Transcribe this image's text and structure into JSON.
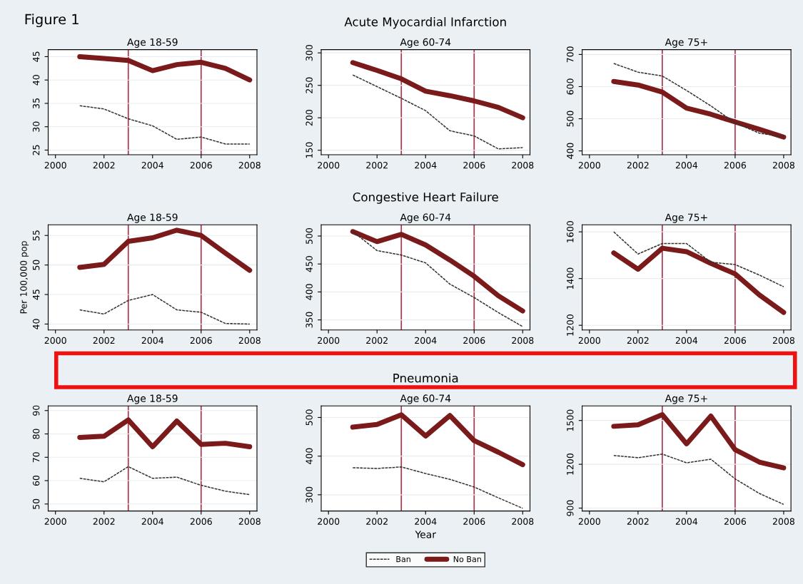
{
  "chart_data": [
    {
      "type": "line",
      "title": "Age 18-59",
      "annotations": [
        "Figure 1"
      ],
      "x": [
        2001,
        2002,
        2003,
        2004,
        2005,
        2006,
        2007,
        2008
      ],
      "xlim": [
        1999.7,
        2008.3
      ],
      "xticks": [
        2000,
        2002,
        2004,
        2006,
        2008
      ],
      "ylim": [
        24,
        46.5
      ],
      "yticks": [
        25,
        30,
        35,
        40,
        45
      ],
      "grid": "y",
      "legend": false,
      "ref_lines": [
        {
          "axis": "x",
          "value": 2003,
          "color": "#b0304a"
        },
        {
          "axis": "x",
          "value": 2006,
          "color": "#b0304a"
        }
      ],
      "series": [
        {
          "color": "#333333",
          "line_style": "dashed",
          "values": [
            34.5,
            33.8,
            31.7,
            30.2,
            27.3,
            27.8,
            26.3,
            26.3
          ]
        },
        {
          "color": "#7a1a1a",
          "line_style": "solid",
          "values": [
            45,
            44.6,
            44.2,
            42,
            43.3,
            43.8,
            42.5,
            40
          ]
        }
      ]
    },
    {
      "type": "line",
      "title": "Age 60-74",
      "annotations": [
        "Acute Myocardial Infarction"
      ],
      "x": [
        2001,
        2002,
        2003,
        2004,
        2005,
        2006,
        2007,
        2008
      ],
      "xlim": [
        1999.7,
        2008.3
      ],
      "xticks": [
        2000,
        2002,
        2004,
        2006,
        2008
      ],
      "ylim": [
        143,
        305
      ],
      "yticks": [
        150,
        200,
        250,
        300
      ],
      "grid": "y",
      "legend": false,
      "ref_lines": [
        {
          "axis": "x",
          "value": 2003,
          "color": "#b0304a"
        },
        {
          "axis": "x",
          "value": 2006,
          "color": "#b0304a"
        }
      ],
      "series": [
        {
          "color": "#333333",
          "line_style": "dashed",
          "values": [
            266,
            248,
            230,
            211,
            180,
            172,
            152,
            154
          ]
        },
        {
          "color": "#7a1a1a",
          "line_style": "solid",
          "values": [
            285,
            273,
            260,
            241,
            234,
            226,
            216,
            200
          ]
        }
      ]
    },
    {
      "type": "line",
      "title": "Age 75+",
      "x": [
        2001,
        2002,
        2003,
        2004,
        2005,
        2006,
        2007,
        2008
      ],
      "xlim": [
        1999.7,
        2008.3
      ],
      "xticks": [
        2000,
        2002,
        2004,
        2006,
        2008
      ],
      "ylim": [
        388,
        715
      ],
      "yticks": [
        400,
        500,
        600,
        700
      ],
      "grid": "y",
      "legend": false,
      "ref_lines": [
        {
          "axis": "x",
          "value": 2003,
          "color": "#b0304a"
        },
        {
          "axis": "x",
          "value": 2006,
          "color": "#b0304a"
        }
      ],
      "series": [
        {
          "color": "#333333",
          "line_style": "dashed",
          "values": [
            672,
            645,
            633,
            588,
            540,
            487,
            455,
            445
          ]
        },
        {
          "color": "#7a1a1a",
          "line_style": "solid",
          "values": [
            616,
            605,
            583,
            533,
            514,
            490,
            467,
            443
          ]
        }
      ]
    },
    {
      "type": "line",
      "title": "Age 18-59",
      "ylabel": "Per 100,000 pop",
      "x": [
        2001,
        2002,
        2003,
        2004,
        2005,
        2006,
        2007,
        2008
      ],
      "xlim": [
        1999.7,
        2008.3
      ],
      "xticks": [
        2000,
        2002,
        2004,
        2006,
        2008
      ],
      "ylim": [
        39,
        56.8
      ],
      "yticks": [
        40,
        45,
        50,
        55
      ],
      "grid": "y",
      "legend": false,
      "ref_lines": [
        {
          "axis": "x",
          "value": 2003,
          "color": "#b0304a"
        },
        {
          "axis": "x",
          "value": 2006,
          "color": "#b0304a"
        }
      ],
      "series": [
        {
          "color": "#333333",
          "line_style": "dashed",
          "values": [
            42.4,
            41.7,
            44,
            45,
            42.4,
            42,
            40.1,
            40
          ]
        },
        {
          "color": "#7a1a1a",
          "line_style": "solid",
          "values": [
            49.6,
            50.1,
            54,
            54.6,
            55.9,
            55,
            52,
            49.1
          ]
        }
      ]
    },
    {
      "type": "line",
      "title": "Age 60-74",
      "annotations": [
        "Congestive Heart Failure"
      ],
      "x": [
        2001,
        2002,
        2003,
        2004,
        2005,
        2006,
        2007,
        2008
      ],
      "xlim": [
        1999.7,
        2008.3
      ],
      "xticks": [
        2000,
        2002,
        2004,
        2006,
        2008
      ],
      "ylim": [
        332,
        520
      ],
      "yticks": [
        350,
        400,
        450,
        500
      ],
      "grid": "y",
      "legend": false,
      "ref_lines": [
        {
          "axis": "x",
          "value": 2003,
          "color": "#b0304a"
        },
        {
          "axis": "x",
          "value": 2006,
          "color": "#b0304a"
        }
      ],
      "series": [
        {
          "color": "#333333",
          "line_style": "dashed",
          "values": [
            508,
            474,
            466,
            452,
            414,
            390,
            363,
            338
          ]
        },
        {
          "color": "#7a1a1a",
          "line_style": "solid",
          "values": [
            508,
            490,
            503,
            484,
            457,
            428,
            393,
            366
          ]
        }
      ]
    },
    {
      "type": "line",
      "title": "Age 75+",
      "x": [
        2001,
        2002,
        2003,
        2004,
        2005,
        2006,
        2007,
        2008
      ],
      "xlim": [
        1999.7,
        2008.3
      ],
      "xticks": [
        2000,
        2002,
        2004,
        2006,
        2008
      ],
      "ylim": [
        1180,
        1630
      ],
      "yticks": [
        1200,
        1400,
        1600
      ],
      "grid": "y",
      "legend": false,
      "ref_lines": [
        {
          "axis": "x",
          "value": 2003,
          "color": "#b0304a"
        },
        {
          "axis": "x",
          "value": 2006,
          "color": "#b0304a"
        }
      ],
      "series": [
        {
          "color": "#333333",
          "line_style": "dashed",
          "values": [
            1600,
            1505,
            1550,
            1550,
            1470,
            1460,
            1415,
            1365
          ]
        },
        {
          "color": "#7a1a1a",
          "line_style": "solid",
          "values": [
            1510,
            1440,
            1530,
            1515,
            1465,
            1420,
            1330,
            1255
          ]
        }
      ]
    },
    {
      "type": "line",
      "title": "Age 18-59",
      "x": [
        2001,
        2002,
        2003,
        2004,
        2005,
        2006,
        2007,
        2008
      ],
      "xlim": [
        1999.7,
        2008.3
      ],
      "xticks": [
        2000,
        2002,
        2004,
        2006,
        2008
      ],
      "ylim": [
        47,
        92
      ],
      "yticks": [
        50,
        60,
        70,
        80,
        90
      ],
      "grid": "y",
      "legend": false,
      "ref_lines": [
        {
          "axis": "x",
          "value": 2003,
          "color": "#b0304a"
        },
        {
          "axis": "x",
          "value": 2006,
          "color": "#b0304a"
        }
      ],
      "series": [
        {
          "color": "#333333",
          "line_style": "dashed",
          "values": [
            61,
            59.5,
            66,
            61,
            61.5,
            58,
            55.5,
            54
          ]
        },
        {
          "color": "#7a1a1a",
          "line_style": "solid",
          "values": [
            78.5,
            79,
            86,
            74.5,
            85.5,
            75.5,
            76,
            74.5
          ]
        }
      ]
    },
    {
      "type": "line",
      "title": "Age 60-74",
      "xlabel": "Year",
      "annotations": [
        "Pneumonia"
      ],
      "x": [
        2001,
        2002,
        2003,
        2004,
        2005,
        2006,
        2007,
        2008
      ],
      "xlim": [
        1999.7,
        2008.3
      ],
      "xticks": [
        2000,
        2002,
        2004,
        2006,
        2008
      ],
      "ylim": [
        258,
        530
      ],
      "yticks": [
        300,
        400,
        500
      ],
      "grid": "y",
      "legend": "bottom",
      "ref_lines": [
        {
          "axis": "x",
          "value": 2003,
          "color": "#b0304a"
        },
        {
          "axis": "x",
          "value": 2006,
          "color": "#b0304a"
        }
      ],
      "series": [
        {
          "name": "Ban",
          "color": "#333333",
          "line_style": "dashed",
          "values": [
            370,
            368,
            372,
            355,
            340,
            320,
            292,
            265
          ]
        },
        {
          "name": "No Ban",
          "color": "#7a1a1a",
          "line_style": "solid",
          "values": [
            475,
            482,
            507,
            452,
            505,
            440,
            410,
            378
          ]
        }
      ]
    },
    {
      "type": "line",
      "title": "Age 75+",
      "x": [
        2001,
        2002,
        2003,
        2004,
        2005,
        2006,
        2007,
        2008
      ],
      "xlim": [
        1999.7,
        2008.3
      ],
      "xticks": [
        2000,
        2002,
        2004,
        2006,
        2008
      ],
      "ylim": [
        880,
        1600
      ],
      "yticks": [
        900,
        1200,
        1500
      ],
      "grid": "y",
      "legend": false,
      "ref_lines": [
        {
          "axis": "x",
          "value": 2003,
          "color": "#b0304a"
        },
        {
          "axis": "x",
          "value": 2006,
          "color": "#b0304a"
        }
      ],
      "series": [
        {
          "color": "#333333",
          "line_style": "dashed",
          "values": [
            1260,
            1245,
            1270,
            1210,
            1235,
            1100,
            1000,
            925
          ]
        },
        {
          "color": "#7a1a1a",
          "line_style": "solid",
          "values": [
            1460,
            1470,
            1540,
            1340,
            1530,
            1300,
            1215,
            1175
          ]
        }
      ]
    }
  ]
}
